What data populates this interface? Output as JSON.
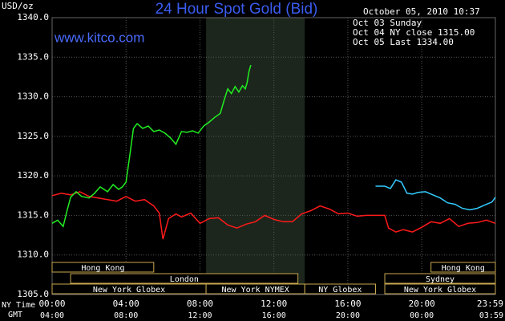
{
  "chart_data": {
    "type": "line",
    "title": "24 Hour Spot Gold (Bid)",
    "timestamp": "October 05, 2010 10:37",
    "website": "www.kitco.com",
    "y_unit": "USD/oz",
    "x_row_label": "NY Time",
    "x2_row_label": "GMT",
    "xlim": [
      0,
      23.983
    ],
    "xticks": [
      {
        "value": 0,
        "label": "00:00"
      },
      {
        "value": 4,
        "label": "04:00"
      },
      {
        "value": 8,
        "label": "08:00"
      },
      {
        "value": 12,
        "label": "12:00"
      },
      {
        "value": 16,
        "label": "16:00"
      },
      {
        "value": 20,
        "label": "20:00"
      },
      {
        "value": 23.983,
        "label": "23:59"
      }
    ],
    "gmt_labels": [
      "04:00",
      "08:00",
      "12:00",
      "16:00",
      "20:00",
      "00:00",
      "03:59"
    ],
    "ylim": [
      1305,
      1340
    ],
    "yticks": [
      {
        "value": 1305,
        "label": "1305.0"
      },
      {
        "value": 1310,
        "label": "1310.0"
      },
      {
        "value": 1315,
        "label": "1315.0"
      },
      {
        "value": 1320,
        "label": "1320.0"
      },
      {
        "value": 1325,
        "label": "1325.0"
      },
      {
        "value": 1330,
        "label": "1330.0"
      },
      {
        "value": 1335,
        "label": "1335.0"
      },
      {
        "value": 1340,
        "label": "1340.0"
      }
    ],
    "grid": true,
    "highlight_xlim": [
      8.33,
      13.67
    ],
    "sessions": [
      [
        {
          "label": "Hong Kong",
          "start": 0,
          "end": 5.5
        },
        {
          "label": "Hong Kong",
          "start": 20.5,
          "end": 23.983
        }
      ],
      [
        {
          "label": "London",
          "start": 1,
          "end": 13.3
        },
        {
          "label": "Sydney",
          "start": 18,
          "end": 23.983
        }
      ],
      [
        {
          "label": "New York Globex",
          "start": 0,
          "end": 8.33
        },
        {
          "label": "New York NYMEX",
          "start": 8.33,
          "end": 13.67
        },
        {
          "label": "NY Globex",
          "start": 13.67,
          "end": 17.5
        },
        {
          "label": "New York Globex",
          "start": 18,
          "end": 23.983
        }
      ]
    ],
    "series": [
      {
        "name": "Oct 03 Sunday",
        "color": "#33ccff",
        "x": [
          17.5,
          18.0,
          18.3,
          18.6,
          18.9,
          19.2,
          19.5,
          19.8,
          20.2,
          20.6,
          21.0,
          21.4,
          21.8,
          22.2,
          22.6,
          23.0,
          23.4,
          23.8,
          23.983
        ],
        "values": [
          1318.7,
          1318.7,
          1318.4,
          1319.5,
          1319.2,
          1317.8,
          1317.7,
          1317.9,
          1318.0,
          1317.6,
          1317.2,
          1316.6,
          1316.4,
          1315.9,
          1315.7,
          1315.9,
          1316.3,
          1316.7,
          1317.3
        ]
      },
      {
        "name": "Oct 04 NY close 1315.00",
        "color": "#ff1a1a",
        "x": [
          0,
          0.5,
          1.0,
          1.5,
          2.0,
          2.5,
          3.0,
          3.5,
          4.0,
          4.5,
          5.0,
          5.5,
          5.8,
          6.0,
          6.3,
          6.7,
          7.0,
          7.5,
          8.0,
          8.5,
          9.0,
          9.5,
          10.0,
          10.5,
          11.0,
          11.5,
          12.0,
          12.5,
          13.0,
          13.5,
          14.0,
          14.5,
          15.0,
          15.5,
          16.0,
          16.5,
          17.0,
          17.5,
          18.0,
          18.2,
          18.6,
          19.0,
          19.5,
          20.0,
          20.5,
          21.0,
          21.5,
          22.0,
          22.5,
          23.0,
          23.5,
          23.983
        ],
        "values": [
          1317.5,
          1317.8,
          1317.6,
          1318.0,
          1317.4,
          1317.2,
          1317.0,
          1316.8,
          1317.4,
          1316.8,
          1317.0,
          1316.2,
          1315.3,
          1312.0,
          1314.6,
          1315.2,
          1314.8,
          1315.3,
          1314.0,
          1314.6,
          1314.7,
          1313.8,
          1313.4,
          1313.9,
          1314.2,
          1315.0,
          1314.5,
          1314.2,
          1314.2,
          1315.2,
          1315.6,
          1316.2,
          1315.8,
          1315.2,
          1315.3,
          1314.9,
          1315.0,
          1315.0,
          1315.0,
          1313.4,
          1312.9,
          1313.2,
          1312.9,
          1313.5,
          1314.2,
          1314.0,
          1314.6,
          1313.6,
          1314.0,
          1314.1,
          1314.4,
          1314.0
        ]
      },
      {
        "name": "Oct 05 Last 1334.00",
        "color": "#22ee22",
        "x": [
          0,
          0.3,
          0.6,
          0.8,
          1.0,
          1.3,
          1.6,
          2.0,
          2.3,
          2.6,
          3.0,
          3.3,
          3.6,
          3.8,
          4.0,
          4.2,
          4.4,
          4.6,
          4.9,
          5.2,
          5.5,
          5.8,
          6.1,
          6.4,
          6.7,
          7.0,
          7.3,
          7.6,
          7.9,
          8.2,
          8.5,
          8.8,
          9.1,
          9.3,
          9.5,
          9.7,
          9.9,
          10.1,
          10.3,
          10.45,
          10.55,
          10.65,
          10.75
        ],
        "values": [
          1314.0,
          1314.4,
          1313.6,
          1315.5,
          1317.3,
          1318.0,
          1317.4,
          1317.2,
          1317.8,
          1318.6,
          1318.0,
          1318.9,
          1318.3,
          1318.6,
          1319.2,
          1322.5,
          1326.0,
          1326.6,
          1326.0,
          1326.3,
          1325.6,
          1325.8,
          1325.4,
          1324.8,
          1324.0,
          1325.6,
          1325.5,
          1325.7,
          1325.4,
          1326.3,
          1326.8,
          1327.4,
          1327.9,
          1329.5,
          1331.0,
          1330.4,
          1331.3,
          1330.6,
          1331.4,
          1331.0,
          1331.8,
          1333.2,
          1334.0
        ]
      }
    ]
  }
}
